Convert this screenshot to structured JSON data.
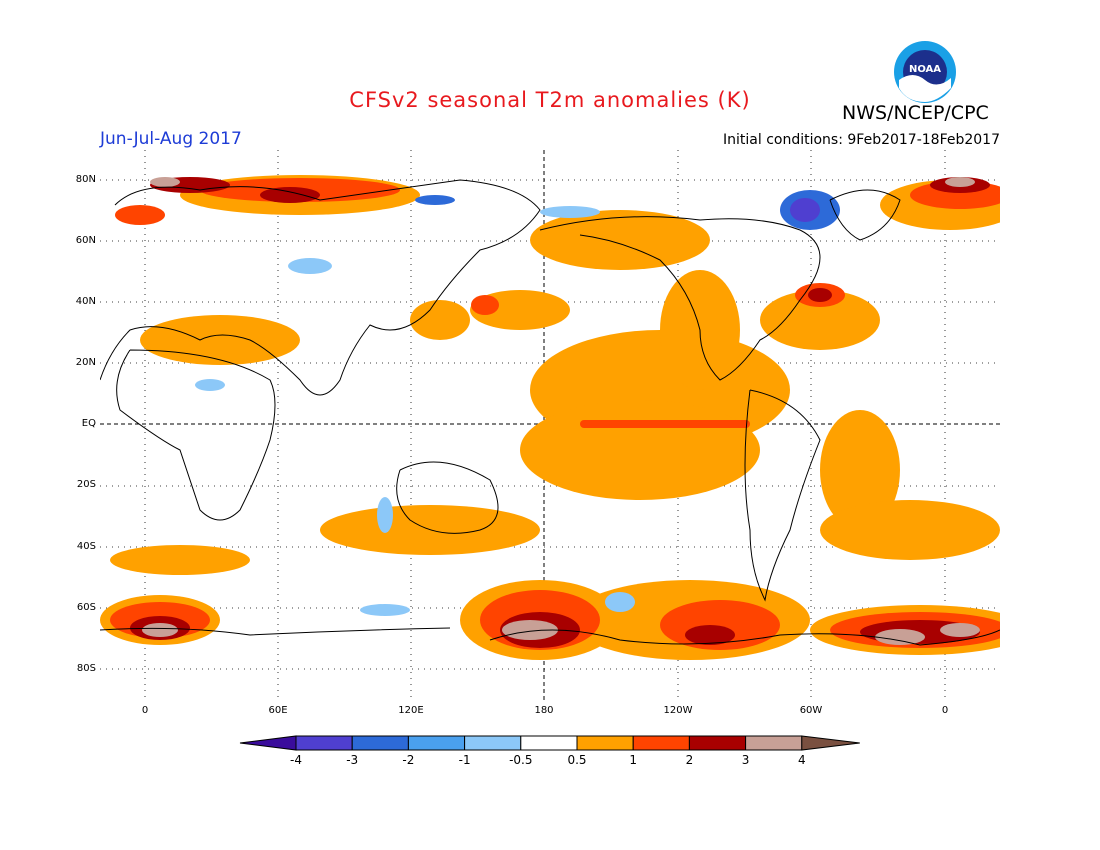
{
  "header": {
    "title": "CFSv2 seasonal T2m anomalies (K)",
    "agency": "NWS/NCEP/CPC",
    "season": "Jun-Jul-Aug 2017",
    "initial_conditions": "Initial conditions: 9Feb2017-18Feb2017",
    "logo_text": "NOAA"
  },
  "colors": {
    "title": "#e8191e",
    "season": "#1e3cd6",
    "logo_outer": "#1aa0e6",
    "logo_inner": "#1c2f8c"
  },
  "map": {
    "lat_labels": [
      "80N",
      "60N",
      "40N",
      "20N",
      "EQ",
      "20S",
      "40S",
      "60S",
      "80S"
    ],
    "lon_labels": [
      "0",
      "60E",
      "120E",
      "180",
      "120W",
      "60W",
      "0"
    ]
  },
  "colorbar": {
    "labels": [
      "-4",
      "-3",
      "-2",
      "-1",
      "-0.5",
      "0.5",
      "1",
      "2",
      "3",
      "4"
    ],
    "colors": [
      "#3a0c9c",
      "#4f3fd0",
      "#2d6ad8",
      "#4aa0ee",
      "#8cc8f8",
      "#ffffff",
      "#ffa100",
      "#ff4400",
      "#a80000",
      "#c8a096",
      "#7a5040"
    ]
  }
}
